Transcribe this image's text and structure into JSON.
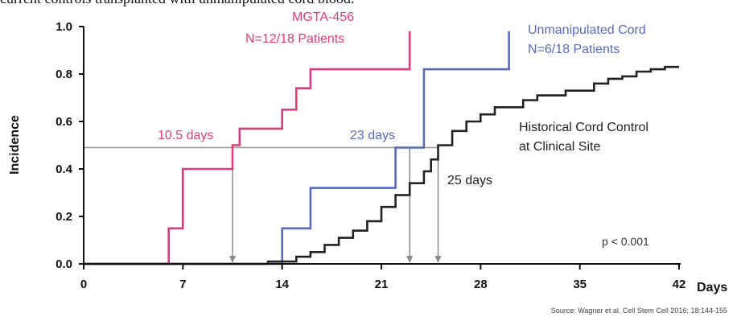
{
  "caption": "current controls transplanted with unmanipulated cord blood.",
  "chart_data": {
    "type": "line",
    "xlabel": "Days",
    "ylabel": "Incidence",
    "xlim": [
      0,
      42
    ],
    "ylim": [
      0,
      1.0
    ],
    "x_ticks": [
      "0",
      "7",
      "14",
      "21",
      "28",
      "35",
      "42"
    ],
    "y_ticks": [
      "0.0",
      "0.2",
      "0.4",
      "0.6",
      "0.8",
      "1.0"
    ],
    "grid": false,
    "series": [
      {
        "name": "MGTA-456",
        "color": "#d43f7c",
        "points": [
          [
            0,
            0
          ],
          [
            6,
            0
          ],
          [
            6,
            0.15
          ],
          [
            7,
            0.15
          ],
          [
            7,
            0.4
          ],
          [
            10.5,
            0.4
          ],
          [
            10.5,
            0.5
          ],
          [
            11,
            0.5
          ],
          [
            11,
            0.57
          ],
          [
            14,
            0.57
          ],
          [
            14,
            0.65
          ],
          [
            15,
            0.65
          ],
          [
            15,
            0.74
          ],
          [
            16,
            0.74
          ],
          [
            16,
            0.82
          ],
          [
            23,
            0.82
          ],
          [
            23,
            0.98
          ]
        ]
      },
      {
        "name": "Unmanipulated Cord",
        "color": "#5a6ab8",
        "points": [
          [
            0,
            0
          ],
          [
            14,
            0
          ],
          [
            14,
            0.15
          ],
          [
            16,
            0.15
          ],
          [
            16,
            0.32
          ],
          [
            22,
            0.32
          ],
          [
            22,
            0.49
          ],
          [
            24,
            0.49
          ],
          [
            24,
            0.82
          ],
          [
            30,
            0.82
          ],
          [
            30,
            0.98
          ]
        ]
      },
      {
        "name": "Historical Cord Control at Clinical Site",
        "color": "#222222",
        "points": [
          [
            0,
            0
          ],
          [
            13,
            0
          ],
          [
            13,
            0.01
          ],
          [
            15,
            0.01
          ],
          [
            15,
            0.03
          ],
          [
            16,
            0.03
          ],
          [
            16,
            0.05
          ],
          [
            17,
            0.05
          ],
          [
            17,
            0.08
          ],
          [
            18,
            0.08
          ],
          [
            18,
            0.11
          ],
          [
            19,
            0.11
          ],
          [
            19,
            0.14
          ],
          [
            20,
            0.14
          ],
          [
            20,
            0.18
          ],
          [
            21,
            0.18
          ],
          [
            21,
            0.24
          ],
          [
            22,
            0.24
          ],
          [
            22,
            0.29
          ],
          [
            23,
            0.29
          ],
          [
            23,
            0.34
          ],
          [
            24,
            0.34
          ],
          [
            24,
            0.39
          ],
          [
            24.5,
            0.39
          ],
          [
            24.5,
            0.44
          ],
          [
            25,
            0.44
          ],
          [
            25,
            0.5
          ],
          [
            26,
            0.5
          ],
          [
            26,
            0.56
          ],
          [
            27,
            0.56
          ],
          [
            27,
            0.6
          ],
          [
            28,
            0.6
          ],
          [
            28,
            0.63
          ],
          [
            29,
            0.63
          ],
          [
            29,
            0.66
          ],
          [
            31,
            0.66
          ],
          [
            31,
            0.69
          ],
          [
            32,
            0.69
          ],
          [
            32,
            0.71
          ],
          [
            34,
            0.71
          ],
          [
            34,
            0.73
          ],
          [
            36,
            0.73
          ],
          [
            36,
            0.76
          ],
          [
            37,
            0.76
          ],
          [
            37,
            0.78
          ],
          [
            38,
            0.78
          ],
          [
            38,
            0.79
          ],
          [
            39,
            0.79
          ],
          [
            39,
            0.81
          ],
          [
            40,
            0.81
          ],
          [
            40,
            0.82
          ],
          [
            41,
            0.82
          ],
          [
            41,
            0.83
          ],
          [
            42,
            0.83
          ]
        ]
      }
    ],
    "reference_line": {
      "y": 0.49,
      "color": "#999999"
    },
    "medians": [
      {
        "x": 10.5,
        "label": "10.5 days",
        "color": "#d43f7c"
      },
      {
        "x": 23,
        "label": "23 days",
        "color": "#5a6ab8"
      },
      {
        "x": 25,
        "label": "25 days",
        "color": "#222222"
      }
    ],
    "annotations": {
      "mgta_line1": "MGTA-456",
      "mgta_line2": "N=12/18 Patients",
      "cord_line1": "Unmanipulated Cord",
      "cord_line2": "N=6/18 Patients",
      "hist_line1": "Historical Cord Control",
      "hist_line2": "at Clinical Site",
      "pvalue": "p < 0.001"
    },
    "source": "Source: Wagner et al. Cell Stem Cell 2016; 18:144-155"
  }
}
